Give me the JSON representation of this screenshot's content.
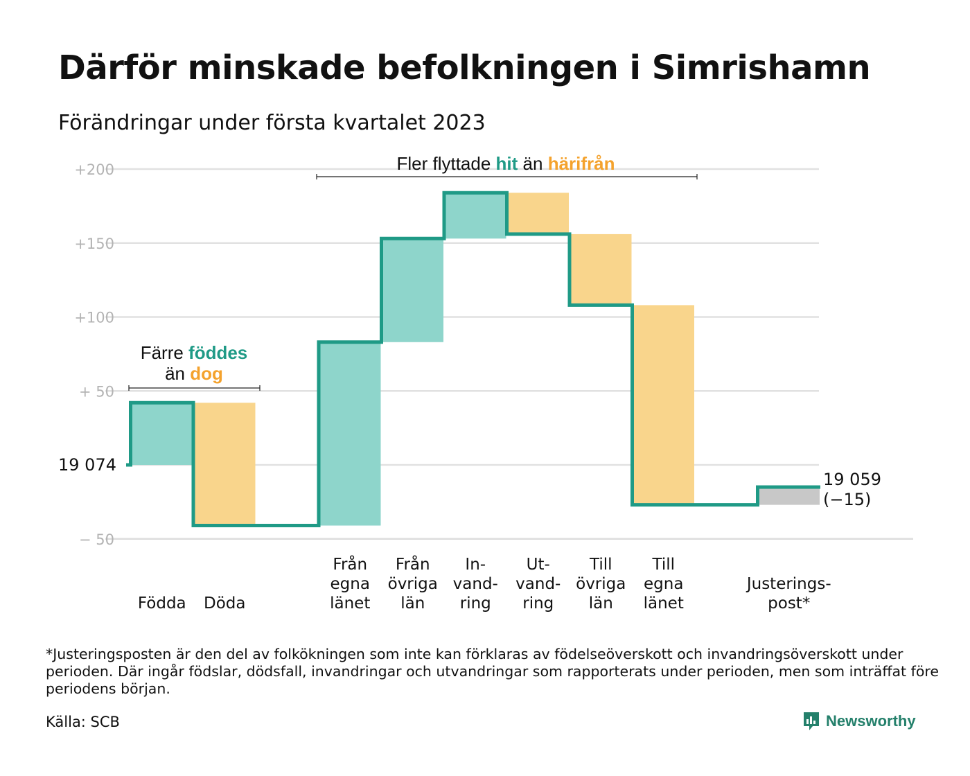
{
  "title": "Därför minskade befolkningen i Simrishamn",
  "subtitle": "Förändringar under första kvartalet 2023",
  "chart_data": {
    "type": "waterfall",
    "start_label": "19 074",
    "end_label_line1": "19 059",
    "end_label_line2": "(−15)",
    "y_ticks": [
      {
        "value": 200,
        "label": "+200"
      },
      {
        "value": 150,
        "label": "+150"
      },
      {
        "value": 100,
        "label": "+100"
      },
      {
        "value": 50,
        "label": "+ 50"
      },
      {
        "value": 0,
        "label": "19 074"
      },
      {
        "value": -50,
        "label": "− 50"
      }
    ],
    "ylim": [
      -50,
      200
    ],
    "steps": [
      {
        "category": "Födda",
        "label_lines": [
          "Födda"
        ],
        "value": 42,
        "color": "teal"
      },
      {
        "category": "Döda",
        "label_lines": [
          "Döda"
        ],
        "value": -83,
        "color": "orange"
      },
      {
        "category": "",
        "label_lines": [],
        "value": 0,
        "color": "none"
      },
      {
        "category": "Från egna länet",
        "label_lines": [
          "Från",
          "egna",
          "länet"
        ],
        "value": 124,
        "color": "teal"
      },
      {
        "category": "Från övriga län",
        "label_lines": [
          "Från",
          "övriga",
          "län"
        ],
        "value": 70,
        "color": "teal"
      },
      {
        "category": "Invandring",
        "label_lines": [
          "In-",
          "vand-",
          "ring"
        ],
        "value": 31,
        "color": "teal"
      },
      {
        "category": "Utvandring",
        "label_lines": [
          "Ut-",
          "vand-",
          "ring"
        ],
        "value": -28,
        "color": "orange"
      },
      {
        "category": "Till övriga län",
        "label_lines": [
          "Till",
          "övriga",
          "län"
        ],
        "value": -48,
        "color": "orange"
      },
      {
        "category": "Till egna länet",
        "label_lines": [
          "Till",
          "egna",
          "länet"
        ],
        "value": -135,
        "color": "orange"
      },
      {
        "category": "",
        "label_lines": [],
        "value": 0,
        "color": "none"
      },
      {
        "category": "Justeringspost*",
        "label_lines": [
          "Justerings-",
          "post*"
        ],
        "value": 12,
        "color": "gray"
      }
    ],
    "annotations": [
      {
        "id": "births",
        "line1_parts": [
          "Färre ",
          "föddes"
        ],
        "line2_parts": [
          "än ",
          "dog"
        ]
      },
      {
        "id": "migration",
        "line1_parts": [
          "Fler flyttade ",
          "hit",
          " än ",
          "härifrån"
        ]
      }
    ],
    "colors": {
      "teal": "#8ed5cb",
      "orange": "#f9d58c",
      "gray": "#c8c8c8",
      "line": "#1f9a86",
      "grid": "#e1e1e1",
      "axis": "#dddddd"
    }
  },
  "footnote": "*Justeringsposten är den del av folkökningen som inte kan förklaras av födelseöverskott och invandringsöverskott under perioden. Där ingår födslar, dödsfall, invandringar och utvandringar som rapporterats under perioden, men som inträffat före periodens början.",
  "source": "Källa: SCB",
  "brand": {
    "name": "Newsworthy",
    "icon": "newsworthy-logo-icon"
  }
}
